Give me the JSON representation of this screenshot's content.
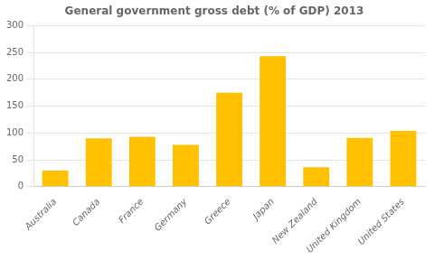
{
  "chart_data": {
    "type": "bar",
    "title": "General government gross debt (% of GDP) 2013",
    "categories": [
      "Australia",
      "Canada",
      "France",
      "Germany",
      "Greece",
      "Japan",
      "New Zealand",
      "United Kingdom",
      "United States"
    ],
    "values": [
      30,
      90,
      93,
      78,
      175,
      243,
      36,
      91,
      104
    ],
    "color": "#FFC000",
    "ylim": [
      0,
      300
    ],
    "yticks": [
      0,
      50,
      100,
      150,
      200,
      250,
      300
    ],
    "grid": true
  }
}
